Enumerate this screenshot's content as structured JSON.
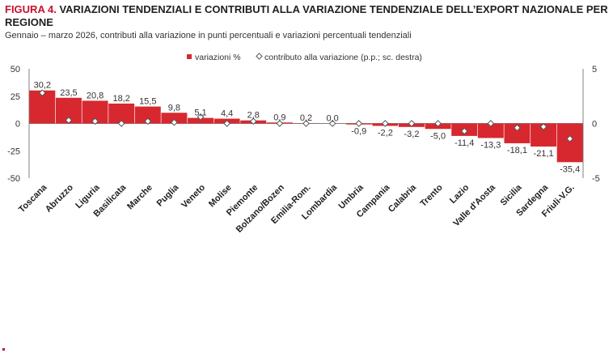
{
  "title_prefix": "FIGURA 4.",
  "title_text": "VARIAZIONI TENDENZIALI E CONTRIBUTI ALLA VARIAZIONE TENDENZIALE DELL’EXPORT NAZIONALE PER REGIONE",
  "subtitle": "Gennaio – marzo 2026, contributi alla variazione in punti percentuali e variazioni percentuali tendenziali",
  "colors": {
    "bar": "#d7282f",
    "marker_stroke": "#555555",
    "axis": "#808080"
  },
  "chart_data": {
    "type": "bar",
    "categories": [
      "Toscana",
      "Abruzzo",
      "Liguria",
      "Basilicata",
      "Marche",
      "Puglia",
      "Veneto",
      "Molise",
      "Piemonte",
      "Bolzano/Bozen",
      "Emilia-Rom.",
      "Lombardia",
      "Umbria",
      "Campania",
      "Calabria",
      "Trento",
      "Lazio",
      "Valle d'Aosta",
      "Sicilia",
      "Sardegna",
      "Friuli-V.G."
    ],
    "series": [
      {
        "name": "variazioni %",
        "axis": "left",
        "values": [
          30.2,
          23.5,
          20.8,
          18.2,
          15.5,
          9.8,
          5.1,
          4.4,
          2.8,
          0.9,
          0.2,
          0.0,
          -0.9,
          -2.2,
          -3.2,
          -5.0,
          -11.4,
          -13.3,
          -18.1,
          -21.1,
          -35.4
        ],
        "labels": [
          "30,2",
          "23,5",
          "20,8",
          "18,2",
          "15,5",
          "9,8",
          "5,1",
          "4,4",
          "2,8",
          "0,9",
          "0,2",
          "0,0",
          "-0,9",
          "-2,2",
          "-3,2",
          "-5,0",
          "-11,4",
          "-13,3",
          "-18,1",
          "-21,1",
          "-35,4"
        ]
      },
      {
        "name": "contributo alla variazione (p.p.; sc. destra)",
        "axis": "right",
        "type": "scatter",
        "values": [
          2.8,
          0.3,
          0.2,
          0.0,
          0.2,
          0.1,
          0.6,
          0.0,
          0.2,
          0.0,
          0.0,
          0.0,
          0.0,
          0.0,
          0.0,
          0.0,
          -0.7,
          0.0,
          -0.4,
          -0.3,
          -1.4
        ]
      }
    ],
    "ylim_left": [
      -50,
      50
    ],
    "yticks_left": [
      -50,
      -25,
      0,
      25,
      50
    ],
    "ylim_right": [
      -5,
      5
    ],
    "yticks_right": [
      -5,
      0,
      5
    ],
    "legend_position": "top-center",
    "grid": false
  }
}
